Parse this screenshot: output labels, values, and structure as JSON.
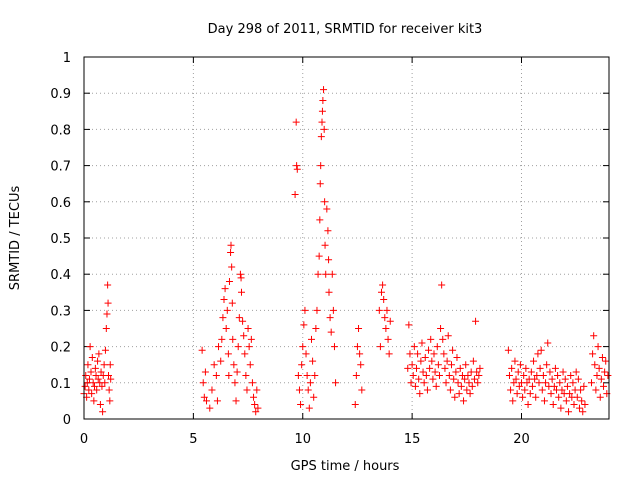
{
  "chart_data": {
    "type": "scatter",
    "title": "Day 298 of 2011, SRMTID for receiver kit3",
    "xlabel": "GPS time / hours",
    "ylabel": "SRMTID / TECUs",
    "xlim": [
      0,
      24
    ],
    "ylim": [
      0,
      1
    ],
    "xticks": [
      0,
      5,
      10,
      15,
      20
    ],
    "yticks": [
      0,
      0.1,
      0.2,
      0.3,
      0.4,
      0.5,
      0.6,
      0.7,
      0.8,
      0.9,
      1
    ],
    "x_tick_labels": [
      "0",
      "5",
      "10",
      "15",
      "20"
    ],
    "y_tick_labels": [
      "0",
      "0.1",
      "0.2",
      "0.3",
      "0.4",
      "0.5",
      "0.6",
      "0.7",
      "0.8",
      "0.9",
      "1"
    ],
    "grid": true,
    "marker": "+",
    "series": [
      {
        "name": "SRMTID",
        "color": "#ff0000",
        "points": [
          [
            0.0,
            0.07
          ],
          [
            0.05,
            0.09
          ],
          [
            0.08,
            0.12
          ],
          [
            0.12,
            0.06
          ],
          [
            0.15,
            0.1
          ],
          [
            0.18,
            0.15
          ],
          [
            0.22,
            0.08
          ],
          [
            0.25,
            0.11
          ],
          [
            0.28,
            0.2
          ],
          [
            0.32,
            0.13
          ],
          [
            0.35,
            0.07
          ],
          [
            0.38,
            0.17
          ],
          [
            0.42,
            0.1
          ],
          [
            0.45,
            0.05
          ],
          [
            0.48,
            0.09
          ],
          [
            0.52,
            0.14
          ],
          [
            0.55,
            0.12
          ],
          [
            0.58,
            0.08
          ],
          [
            0.62,
            0.16
          ],
          [
            0.65,
            0.11
          ],
          [
            0.68,
            0.18
          ],
          [
            0.72,
            0.1
          ],
          [
            0.75,
            0.04
          ],
          [
            0.78,
            0.13
          ],
          [
            0.82,
            0.09
          ],
          [
            0.85,
            0.02
          ],
          [
            0.88,
            0.12
          ],
          [
            0.92,
            0.15
          ],
          [
            0.95,
            0.1
          ],
          [
            0.98,
            0.19
          ],
          [
            1.02,
            0.25
          ],
          [
            1.05,
            0.29
          ],
          [
            1.08,
            0.37
          ],
          [
            1.1,
            0.32
          ],
          [
            1.12,
            0.12
          ],
          [
            1.15,
            0.08
          ],
          [
            1.18,
            0.05
          ],
          [
            1.2,
            0.15
          ],
          [
            1.22,
            0.11
          ],
          [
            5.4,
            0.19
          ],
          [
            5.45,
            0.1
          ],
          [
            5.5,
            0.06
          ],
          [
            5.55,
            0.13
          ],
          [
            5.6,
            0.05
          ],
          [
            5.75,
            0.03
          ],
          [
            5.85,
            0.08
          ],
          [
            5.95,
            0.15
          ],
          [
            6.05,
            0.12
          ],
          [
            6.1,
            0.05
          ],
          [
            6.15,
            0.2
          ],
          [
            6.25,
            0.16
          ],
          [
            6.3,
            0.22
          ],
          [
            6.35,
            0.28
          ],
          [
            6.4,
            0.33
          ],
          [
            6.45,
            0.36
          ],
          [
            6.5,
            0.25
          ],
          [
            6.55,
            0.3
          ],
          [
            6.6,
            0.18
          ],
          [
            6.62,
            0.12
          ],
          [
            6.65,
            0.38
          ],
          [
            6.7,
            0.46
          ],
          [
            6.72,
            0.48
          ],
          [
            6.75,
            0.42
          ],
          [
            6.78,
            0.32
          ],
          [
            6.8,
            0.22
          ],
          [
            6.85,
            0.15
          ],
          [
            6.9,
            0.1
          ],
          [
            6.95,
            0.05
          ],
          [
            7.0,
            0.13
          ],
          [
            7.05,
            0.2
          ],
          [
            7.1,
            0.28
          ],
          [
            7.15,
            0.4
          ],
          [
            7.18,
            0.39
          ],
          [
            7.2,
            0.35
          ],
          [
            7.25,
            0.27
          ],
          [
            7.3,
            0.23
          ],
          [
            7.35,
            0.18
          ],
          [
            7.4,
            0.12
          ],
          [
            7.45,
            0.08
          ],
          [
            7.5,
            0.25
          ],
          [
            7.55,
            0.2
          ],
          [
            7.6,
            0.15
          ],
          [
            7.65,
            0.22
          ],
          [
            7.7,
            0.1
          ],
          [
            7.75,
            0.06
          ],
          [
            7.8,
            0.04
          ],
          [
            7.85,
            0.02
          ],
          [
            7.9,
            0.08
          ],
          [
            7.95,
            0.03
          ],
          [
            9.65,
            0.62
          ],
          [
            9.7,
            0.82
          ],
          [
            9.72,
            0.7
          ],
          [
            9.75,
            0.69
          ],
          [
            9.8,
            0.12
          ],
          [
            9.85,
            0.08
          ],
          [
            9.9,
            0.04
          ],
          [
            9.95,
            0.15
          ],
          [
            10.0,
            0.2
          ],
          [
            10.05,
            0.26
          ],
          [
            10.1,
            0.3
          ],
          [
            10.15,
            0.18
          ],
          [
            10.2,
            0.12
          ],
          [
            10.25,
            0.08
          ],
          [
            10.3,
            0.03
          ],
          [
            10.35,
            0.1
          ],
          [
            10.4,
            0.22
          ],
          [
            10.45,
            0.16
          ],
          [
            10.5,
            0.06
          ],
          [
            10.55,
            0.12
          ],
          [
            10.6,
            0.25
          ],
          [
            10.65,
            0.3
          ],
          [
            10.7,
            0.4
          ],
          [
            10.75,
            0.45
          ],
          [
            10.78,
            0.55
          ],
          [
            10.8,
            0.65
          ],
          [
            10.82,
            0.7
          ],
          [
            10.85,
            0.78
          ],
          [
            10.88,
            0.82
          ],
          [
            10.9,
            0.85
          ],
          [
            10.92,
            0.88
          ],
          [
            10.95,
            0.91
          ],
          [
            10.98,
            0.8
          ],
          [
            11.0,
            0.6
          ],
          [
            11.02,
            0.48
          ],
          [
            11.05,
            0.4
          ],
          [
            11.1,
            0.58
          ],
          [
            11.15,
            0.52
          ],
          [
            11.18,
            0.44
          ],
          [
            11.2,
            0.35
          ],
          [
            11.25,
            0.28
          ],
          [
            11.3,
            0.24
          ],
          [
            11.35,
            0.4
          ],
          [
            11.4,
            0.3
          ],
          [
            11.45,
            0.2
          ],
          [
            11.5,
            0.1
          ],
          [
            12.4,
            0.04
          ],
          [
            12.45,
            0.12
          ],
          [
            12.5,
            0.2
          ],
          [
            12.55,
            0.25
          ],
          [
            12.6,
            0.18
          ],
          [
            12.65,
            0.15
          ],
          [
            12.7,
            0.08
          ],
          [
            13.5,
            0.3
          ],
          [
            13.55,
            0.2
          ],
          [
            13.6,
            0.35
          ],
          [
            13.65,
            0.37
          ],
          [
            13.7,
            0.33
          ],
          [
            13.75,
            0.28
          ],
          [
            13.8,
            0.25
          ],
          [
            13.85,
            0.3
          ],
          [
            13.9,
            0.22
          ],
          [
            13.95,
            0.18
          ],
          [
            14.0,
            0.27
          ],
          [
            14.8,
            0.14
          ],
          [
            14.85,
            0.26
          ],
          [
            14.9,
            0.18
          ],
          [
            14.95,
            0.1
          ],
          [
            15.0,
            0.15
          ],
          [
            15.05,
            0.12
          ],
          [
            15.1,
            0.2
          ],
          [
            15.15,
            0.09
          ],
          [
            15.2,
            0.14
          ],
          [
            15.25,
            0.18
          ],
          [
            15.3,
            0.11
          ],
          [
            15.35,
            0.07
          ],
          [
            15.4,
            0.16
          ],
          [
            15.45,
            0.21
          ],
          [
            15.5,
            0.13
          ],
          [
            15.55,
            0.1
          ],
          [
            15.6,
            0.17
          ],
          [
            15.65,
            0.12
          ],
          [
            15.7,
            0.08
          ],
          [
            15.75,
            0.19
          ],
          [
            15.8,
            0.14
          ],
          [
            15.85,
            0.22
          ],
          [
            15.9,
            0.16
          ],
          [
            15.95,
            0.11
          ],
          [
            16.0,
            0.18
          ],
          [
            16.05,
            0.13
          ],
          [
            16.1,
            0.09
          ],
          [
            16.15,
            0.2
          ],
          [
            16.2,
            0.15
          ],
          [
            16.25,
            0.12
          ],
          [
            16.3,
            0.25
          ],
          [
            16.35,
            0.37
          ],
          [
            16.4,
            0.22
          ],
          [
            16.45,
            0.18
          ],
          [
            16.5,
            0.14
          ],
          [
            16.55,
            0.1
          ],
          [
            16.6,
            0.16
          ],
          [
            16.65,
            0.23
          ],
          [
            16.7,
            0.12
          ],
          [
            16.75,
            0.08
          ],
          [
            16.8,
            0.15
          ],
          [
            16.85,
            0.19
          ],
          [
            16.9,
            0.11
          ],
          [
            16.95,
            0.06
          ],
          [
            17.0,
            0.13
          ],
          [
            17.05,
            0.17
          ],
          [
            17.1,
            0.1
          ],
          [
            17.15,
            0.07
          ],
          [
            17.2,
            0.14
          ],
          [
            17.25,
            0.09
          ],
          [
            17.3,
            0.12
          ],
          [
            17.35,
            0.05
          ],
          [
            17.4,
            0.11
          ],
          [
            17.45,
            0.15
          ],
          [
            17.5,
            0.08
          ],
          [
            17.55,
            0.12
          ],
          [
            17.6,
            0.1
          ],
          [
            17.65,
            0.07
          ],
          [
            17.7,
            0.13
          ],
          [
            17.75,
            0.09
          ],
          [
            17.8,
            0.16
          ],
          [
            17.85,
            0.11
          ],
          [
            17.9,
            0.27
          ],
          [
            17.95,
            0.13
          ],
          [
            18.0,
            0.1
          ],
          [
            18.05,
            0.12
          ],
          [
            18.1,
            0.14
          ],
          [
            19.4,
            0.19
          ],
          [
            19.45,
            0.12
          ],
          [
            19.5,
            0.08
          ],
          [
            19.55,
            0.14
          ],
          [
            19.6,
            0.05
          ],
          [
            19.65,
            0.1
          ],
          [
            19.7,
            0.16
          ],
          [
            19.75,
            0.11
          ],
          [
            19.8,
            0.07
          ],
          [
            19.85,
            0.13
          ],
          [
            19.9,
            0.09
          ],
          [
            19.95,
            0.15
          ],
          [
            20.0,
            0.1
          ],
          [
            20.05,
            0.06
          ],
          [
            20.1,
            0.12
          ],
          [
            20.15,
            0.08
          ],
          [
            20.2,
            0.14
          ],
          [
            20.25,
            0.1
          ],
          [
            20.3,
            0.04
          ],
          [
            20.35,
            0.11
          ],
          [
            20.4,
            0.07
          ],
          [
            20.45,
            0.13
          ],
          [
            20.5,
            0.09
          ],
          [
            20.55,
            0.16
          ],
          [
            20.6,
            0.11
          ],
          [
            20.65,
            0.06
          ],
          [
            20.7,
            0.12
          ],
          [
            20.75,
            0.18
          ],
          [
            20.8,
            0.1
          ],
          [
            20.85,
            0.14
          ],
          [
            20.9,
            0.19
          ],
          [
            20.95,
            0.08
          ],
          [
            21.0,
            0.12
          ],
          [
            21.05,
            0.05
          ],
          [
            21.1,
            0.1
          ],
          [
            21.15,
            0.15
          ],
          [
            21.2,
            0.21
          ],
          [
            21.25,
            0.09
          ],
          [
            21.3,
            0.13
          ],
          [
            21.35,
            0.07
          ],
          [
            21.4,
            0.11
          ],
          [
            21.45,
            0.04
          ],
          [
            21.5,
            0.09
          ],
          [
            21.55,
            0.14
          ],
          [
            21.6,
            0.08
          ],
          [
            21.65,
            0.12
          ],
          [
            21.7,
            0.06
          ],
          [
            21.75,
            0.1
          ],
          [
            21.8,
            0.03
          ],
          [
            21.85,
            0.08
          ],
          [
            21.9,
            0.13
          ],
          [
            21.95,
            0.07
          ],
          [
            22.0,
            0.11
          ],
          [
            22.05,
            0.05
          ],
          [
            22.1,
            0.09
          ],
          [
            22.15,
            0.02
          ],
          [
            22.2,
            0.07
          ],
          [
            22.25,
            0.12
          ],
          [
            22.3,
            0.06
          ],
          [
            22.35,
            0.1
          ],
          [
            22.4,
            0.04
          ],
          [
            22.45,
            0.08
          ],
          [
            22.5,
            0.13
          ],
          [
            22.55,
            0.06
          ],
          [
            22.6,
            0.11
          ],
          [
            22.65,
            0.03
          ],
          [
            22.7,
            0.08
          ],
          [
            22.75,
            0.05
          ],
          [
            22.8,
            0.02
          ],
          [
            22.85,
            0.09
          ],
          [
            22.9,
            0.04
          ],
          [
            23.2,
            0.1
          ],
          [
            23.25,
            0.18
          ],
          [
            23.3,
            0.23
          ],
          [
            23.35,
            0.15
          ],
          [
            23.4,
            0.08
          ],
          [
            23.45,
            0.12
          ],
          [
            23.5,
            0.2
          ],
          [
            23.55,
            0.14
          ],
          [
            23.6,
            0.06
          ],
          [
            23.65,
            0.11
          ],
          [
            23.7,
            0.17
          ],
          [
            23.75,
            0.09
          ],
          [
            23.8,
            0.13
          ],
          [
            23.85,
            0.16
          ],
          [
            23.9,
            0.07
          ],
          [
            23.95,
            0.12
          ]
        ]
      }
    ]
  }
}
